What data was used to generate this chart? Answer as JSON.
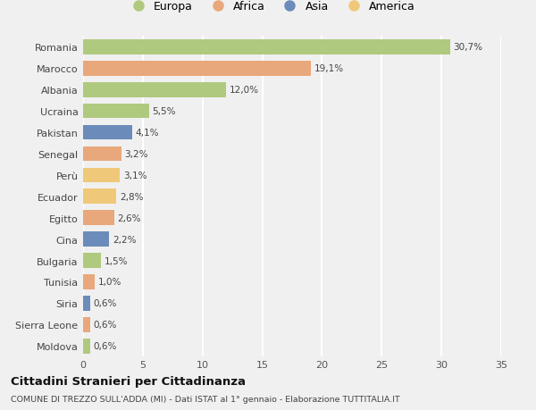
{
  "countries": [
    "Romania",
    "Marocco",
    "Albania",
    "Ucraina",
    "Pakistan",
    "Senegal",
    "Perù",
    "Ecuador",
    "Egitto",
    "Cina",
    "Bulgaria",
    "Tunisia",
    "Siria",
    "Sierra Leone",
    "Moldova"
  ],
  "values": [
    30.7,
    19.1,
    12.0,
    5.5,
    4.1,
    3.2,
    3.1,
    2.8,
    2.6,
    2.2,
    1.5,
    1.0,
    0.6,
    0.6,
    0.6
  ],
  "labels": [
    "30,7%",
    "19,1%",
    "12,0%",
    "5,5%",
    "4,1%",
    "3,2%",
    "3,1%",
    "2,8%",
    "2,6%",
    "2,2%",
    "1,5%",
    "1,0%",
    "0,6%",
    "0,6%",
    "0,6%"
  ],
  "colors": [
    "#afc97e",
    "#e8a87c",
    "#afc97e",
    "#afc97e",
    "#6b8cba",
    "#e8a87c",
    "#f0c87a",
    "#f0c87a",
    "#e8a87c",
    "#6b8cba",
    "#afc97e",
    "#e8a87c",
    "#6b8cba",
    "#e8a87c",
    "#afc97e"
  ],
  "legend_labels": [
    "Europa",
    "Africa",
    "Asia",
    "America"
  ],
  "legend_colors": [
    "#afc97e",
    "#e8a87c",
    "#6b8cba",
    "#f0c87a"
  ],
  "title": "Cittadini Stranieri per Cittadinanza",
  "subtitle": "COMUNE DI TREZZO SULL'ADDA (MI) - Dati ISTAT al 1° gennaio - Elaborazione TUTTITALIA.IT",
  "xlim": [
    0,
    35
  ],
  "xticks": [
    0,
    5,
    10,
    15,
    20,
    25,
    30,
    35
  ],
  "background_color": "#f0f0f0",
  "plot_bg_color": "#f0f0f0",
  "grid_color": "#ffffff",
  "bar_height": 0.7
}
